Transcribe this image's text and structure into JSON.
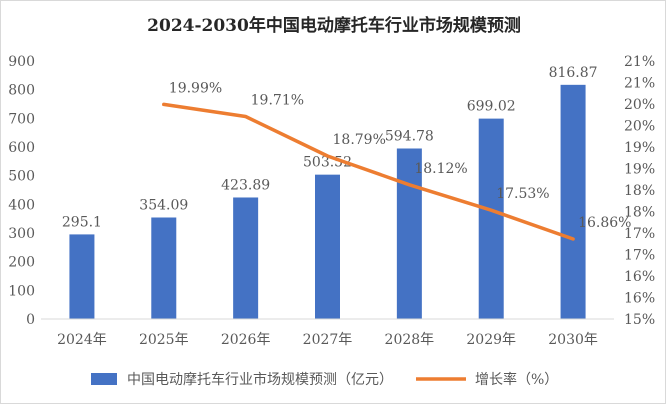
{
  "chart_data": {
    "type": "bar",
    "title": "2024-2030年中国电动摩托车行业市场规模预测",
    "categories": [
      "2024年",
      "2025年",
      "2026年",
      "2027年",
      "2028年",
      "2029年",
      "2030年"
    ],
    "series": [
      {
        "name": "中国电动摩托车行业市场规模预测（亿元）",
        "type": "bar",
        "axis": "left",
        "values": [
          295.1,
          354.09,
          423.89,
          503.52,
          594.78,
          699.02,
          816.87
        ],
        "labels": [
          "295.1",
          "354.09",
          "423.89",
          "503.52",
          "594.78",
          "699.02",
          "816.87"
        ],
        "color": "#4472C4"
      },
      {
        "name": "增长率（%）",
        "type": "line",
        "axis": "right",
        "values": [
          null,
          19.99,
          19.71,
          18.79,
          18.12,
          17.53,
          16.86
        ],
        "labels": [
          "",
          "19.99%",
          "19.71%",
          "18.79%",
          "18.12%",
          "17.53%",
          "16.86%"
        ],
        "color": "#ED7D31"
      }
    ],
    "y_left": {
      "range": [
        0,
        900
      ],
      "ticks": [
        0,
        100,
        200,
        300,
        400,
        500,
        600,
        700,
        800,
        900
      ],
      "tick_labels": [
        "0",
        "100",
        "200",
        "300",
        "400",
        "500",
        "600",
        "700",
        "800",
        "900"
      ]
    },
    "y_right": {
      "range": [
        15,
        21
      ],
      "ticks": [
        15,
        15.5,
        16,
        16.5,
        17,
        17.5,
        18,
        18.5,
        19,
        19.5,
        20,
        20.5,
        21
      ],
      "tick_labels": [
        "15%",
        "16%",
        "16%",
        "17%",
        "17%",
        "18%",
        "18%",
        "19%",
        "19%",
        "20%",
        "20%",
        "21%",
        "21%"
      ]
    },
    "legend_position": "bottom",
    "grid": false
  }
}
